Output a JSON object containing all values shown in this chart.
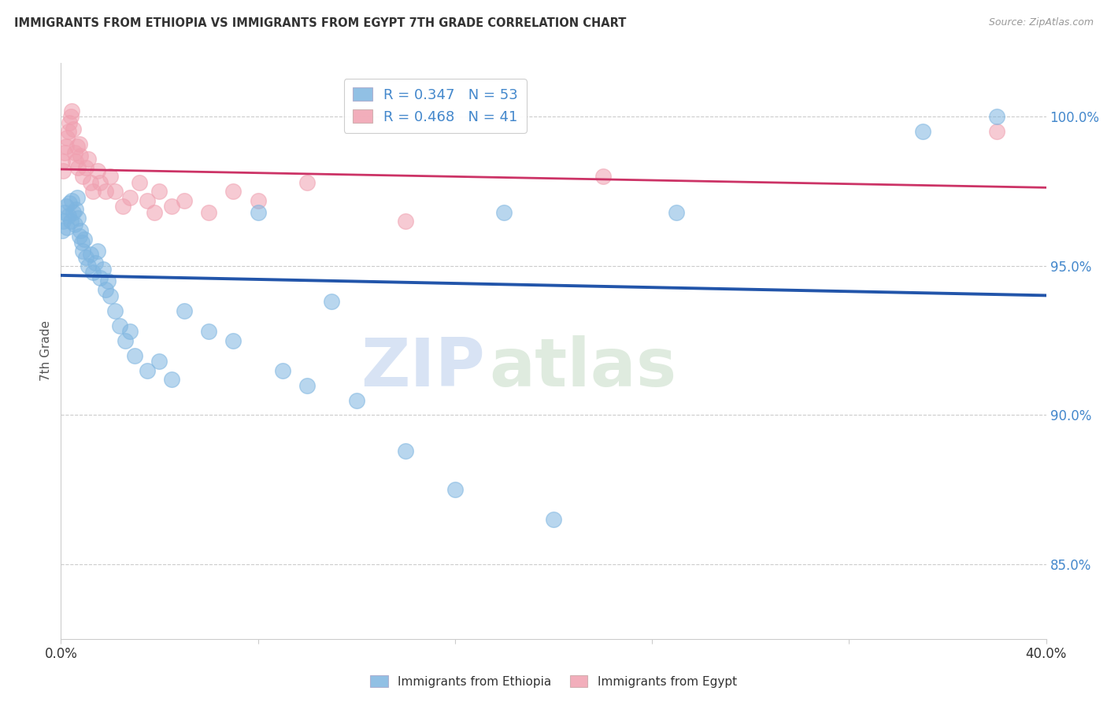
{
  "title": "IMMIGRANTS FROM ETHIOPIA VS IMMIGRANTS FROM EGYPT 7TH GRADE CORRELATION CHART",
  "source": "Source: ZipAtlas.com",
  "ylabel": "7th Grade",
  "yticks": [
    85.0,
    90.0,
    95.0,
    100.0
  ],
  "ytick_labels": [
    "85.0%",
    "90.0%",
    "95.0%",
    "100.0%"
  ],
  "xmin": 0.0,
  "xmax": 40.0,
  "ymin": 82.5,
  "ymax": 101.8,
  "r_ethiopia": 0.347,
  "n_ethiopia": 53,
  "r_egypt": 0.468,
  "n_egypt": 41,
  "legend_label_ethiopia": "Immigrants from Ethiopia",
  "legend_label_egypt": "Immigrants from Egypt",
  "color_ethiopia": "#7EB5E0",
  "color_egypt": "#F0A0B0",
  "line_color_ethiopia": "#2255AA",
  "line_color_egypt": "#CC3366",
  "watermark_zip": "ZIP",
  "watermark_atlas": "atlas",
  "ethiopia_x": [
    0.05,
    0.1,
    0.15,
    0.2,
    0.25,
    0.3,
    0.35,
    0.4,
    0.45,
    0.5,
    0.55,
    0.6,
    0.65,
    0.7,
    0.75,
    0.8,
    0.85,
    0.9,
    0.95,
    1.0,
    1.1,
    1.2,
    1.3,
    1.4,
    1.5,
    1.6,
    1.7,
    1.8,
    1.9,
    2.0,
    2.2,
    2.4,
    2.6,
    2.8,
    3.0,
    3.5,
    4.0,
    4.5,
    5.0,
    6.0,
    7.0,
    8.0,
    9.0,
    10.0,
    11.0,
    12.0,
    14.0,
    16.0,
    18.0,
    20.0,
    25.0,
    35.0,
    38.0
  ],
  "ethiopia_y": [
    96.2,
    96.5,
    96.8,
    97.0,
    96.3,
    96.7,
    97.1,
    96.5,
    97.2,
    96.8,
    96.4,
    96.9,
    97.3,
    96.6,
    96.0,
    96.2,
    95.8,
    95.5,
    95.9,
    95.3,
    95.0,
    95.4,
    94.8,
    95.1,
    95.5,
    94.6,
    94.9,
    94.2,
    94.5,
    94.0,
    93.5,
    93.0,
    92.5,
    92.8,
    92.0,
    91.5,
    91.8,
    91.2,
    93.5,
    92.8,
    92.5,
    96.8,
    91.5,
    91.0,
    93.8,
    90.5,
    88.8,
    87.5,
    96.8,
    86.5,
    96.8,
    99.5,
    100.0
  ],
  "egypt_x": [
    0.05,
    0.1,
    0.15,
    0.2,
    0.25,
    0.3,
    0.35,
    0.4,
    0.45,
    0.5,
    0.55,
    0.6,
    0.65,
    0.7,
    0.75,
    0.8,
    0.9,
    1.0,
    1.1,
    1.2,
    1.3,
    1.5,
    1.6,
    1.8,
    2.0,
    2.2,
    2.5,
    2.8,
    3.2,
    3.5,
    3.8,
    4.0,
    4.5,
    5.0,
    6.0,
    7.0,
    8.0,
    10.0,
    14.0,
    22.0,
    38.0
  ],
  "egypt_y": [
    98.5,
    98.2,
    98.8,
    99.0,
    99.3,
    99.5,
    99.8,
    100.0,
    100.2,
    99.6,
    98.8,
    98.5,
    99.0,
    98.3,
    99.1,
    98.7,
    98.0,
    98.3,
    98.6,
    97.8,
    97.5,
    98.2,
    97.8,
    97.5,
    98.0,
    97.5,
    97.0,
    97.3,
    97.8,
    97.2,
    96.8,
    97.5,
    97.0,
    97.2,
    96.8,
    97.5,
    97.2,
    97.8,
    96.5,
    98.0,
    99.5
  ]
}
